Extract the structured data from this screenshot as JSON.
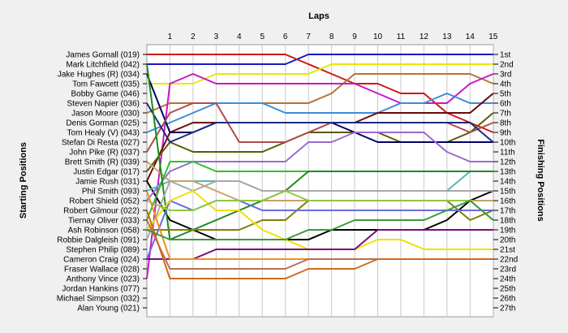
{
  "chart_data": {
    "type": "line",
    "title": "",
    "xlabel": "Laps",
    "ylabel_left": "Starting Positions",
    "ylabel_right": "Finishing Positions",
    "laps": [
      1,
      2,
      3,
      4,
      5,
      6,
      7,
      8,
      9,
      10,
      11,
      12,
      13,
      14,
      15
    ],
    "start_labels": [
      "James Gornall (019)",
      "Mark Litchfield (042)",
      "Jake Hughes (R) (034)",
      "Tom Fawcett (035)",
      "Bobby Game (046)",
      "Steven Napier (036)",
      "Jason Moore (030)",
      "Denis Gorman (025)",
      "Tom Healy (V) (043)",
      "Stefan Di Resta (027)",
      "John Pike (R) (037)",
      "Brett Smith (R) (039)",
      "Justin Edgar (017)",
      "Jamie Rush (031)",
      "Phil Smith (093)",
      "Robert Shield (052)",
      "Robert Gilmour (022)",
      "Tiernay Oliver (033)",
      "Ash Robinson (058)",
      "Robbie Dalgleish (091)",
      "Stephen Philip (089)",
      "Cameron Craig (024)",
      "Fraser Wallace (028)",
      "Anthony Vince (023)",
      "Jordan Hankins (077)",
      "Michael Simpson (032)",
      "Alan Young (021)"
    ],
    "finish_labels": [
      "1st",
      "2nd",
      "3rd",
      "4th",
      "5th",
      "6th",
      "7th",
      "8th",
      "9th",
      "10th",
      "11th",
      "12th",
      "13th",
      "14th",
      "15th",
      "16th",
      "17th",
      "18th",
      "19th",
      "20th",
      "21st",
      "22nd",
      "23rd",
      "24th",
      "25th",
      "26th",
      "27th"
    ],
    "y_range": [
      1,
      27
    ],
    "x_range": [
      0,
      15
    ],
    "grid": "vertical lines at each lap",
    "series": [
      {
        "color": "#1818c8",
        "positions": [
          2,
          2,
          2,
          2,
          2,
          2,
          2,
          1,
          1,
          1,
          1,
          1,
          1,
          1,
          1,
          1
        ]
      },
      {
        "color": "#d01818",
        "positions": [
          1,
          1,
          1,
          1,
          1,
          1,
          1,
          2,
          3,
          4,
          4,
          5,
          5,
          7,
          8,
          9
        ]
      },
      {
        "color": "#e8e800",
        "positions": [
          4,
          4,
          4,
          3,
          3,
          3,
          3,
          3,
          2,
          2,
          2,
          2,
          2,
          2,
          2,
          2
        ]
      },
      {
        "color": "#b87333",
        "positions": [
          7,
          6,
          6,
          6,
          6,
          6,
          6,
          6,
          5,
          3,
          3,
          3,
          3,
          3,
          3,
          4
        ]
      },
      {
        "color": "#c818c8",
        "positions": [
          24,
          4,
          3,
          4,
          4,
          4,
          4,
          4,
          4,
          4,
          5,
          6,
          6,
          6,
          4,
          3
        ]
      },
      {
        "color": "#3a8cdc",
        "positions": [
          9,
          8,
          7,
          6,
          6,
          6,
          7,
          7,
          7,
          7,
          7,
          6,
          6,
          5,
          6,
          6
        ]
      },
      {
        "color": "#6a0808",
        "positions": [
          14,
          9,
          8,
          8,
          8,
          8,
          8,
          8,
          8,
          8,
          7,
          7,
          7,
          7,
          7,
          5
        ]
      },
      {
        "color": "#5a5a00",
        "positions": [
          13,
          10,
          11,
          11,
          11,
          11,
          10,
          9,
          9,
          9,
          9,
          10,
          10,
          10,
          9,
          7
        ]
      },
      {
        "color": "#000066",
        "positions": [
          3,
          9,
          9,
          8,
          8,
          8,
          8,
          8,
          8,
          9,
          10,
          10,
          10,
          10,
          10,
          10
        ]
      },
      {
        "color": "#b04a4a",
        "positions": [
          11,
          7,
          6,
          6,
          10,
          10,
          10,
          9,
          8,
          8,
          8,
          8,
          8,
          8,
          9,
          8
        ]
      },
      {
        "color": "#1c2a80",
        "positions": [
          6,
          10,
          9,
          8,
          8,
          8,
          8,
          8,
          8,
          8,
          8,
          8,
          8,
          8,
          8,
          10
        ]
      },
      {
        "color": "#000000",
        "positions": [
          14,
          18,
          19,
          20,
          20,
          20,
          20,
          20,
          19,
          19,
          19,
          19,
          19,
          18,
          16,
          15
        ]
      },
      {
        "color": "#9a6ad0",
        "positions": [
          16,
          13,
          12,
          12,
          12,
          12,
          12,
          10,
          10,
          9,
          9,
          9,
          9,
          11,
          12,
          12
        ]
      },
      {
        "color": "#50b8b0",
        "positions": [
          15,
          14,
          14,
          14,
          14,
          15,
          15,
          15,
          15,
          15,
          15,
          15,
          15,
          15,
          13,
          13
        ]
      },
      {
        "color": "#c8a068",
        "positions": [
          12,
          14,
          14,
          15,
          16,
          16,
          16,
          16,
          16,
          16,
          16,
          16,
          16,
          16,
          16,
          16
        ]
      },
      {
        "color": "#30c030",
        "positions": [
          18,
          12,
          12,
          13,
          13,
          13,
          13,
          13,
          13,
          13,
          13,
          13,
          13,
          13,
          13,
          13
        ]
      },
      {
        "color": "#1a8a1a",
        "positions": [
          2,
          20,
          19,
          18,
          17,
          16,
          15,
          13,
          13,
          13,
          13,
          13,
          13,
          13,
          13,
          13
        ]
      },
      {
        "color": "#808000",
        "positions": [
          19,
          19,
          19,
          19,
          19,
          18,
          18,
          16,
          16,
          16,
          16,
          16,
          16,
          16,
          18,
          17
        ]
      },
      {
        "color": "#a8a8a8",
        "positions": [
          20,
          14,
          15,
          14,
          14,
          15,
          15,
          15,
          15,
          15,
          15,
          15,
          15,
          15,
          15,
          15
        ]
      },
      {
        "color": "#6b6bd8",
        "positions": [
          22,
          16,
          17,
          16,
          16,
          17,
          17,
          17,
          17,
          17,
          17,
          17,
          17,
          17,
          17,
          17
        ]
      },
      {
        "color": "#f0e000",
        "positions": [
          19,
          16,
          15,
          17,
          17,
          19,
          20,
          21,
          21,
          21,
          20,
          20,
          21,
          21,
          21,
          21
        ]
      },
      {
        "color": "#7a0a7a",
        "positions": [
          22,
          22,
          22,
          21,
          21,
          21,
          21,
          21,
          21,
          21,
          19,
          19,
          19,
          19,
          19,
          19
        ]
      },
      {
        "color": "#f09020",
        "positions": [
          15,
          22,
          22,
          22,
          22,
          22,
          22,
          22,
          22,
          22,
          22,
          22,
          22,
          22,
          22,
          22
        ]
      },
      {
        "color": "#b87050",
        "positions": [
          18,
          23,
          23,
          23,
          23,
          23,
          23,
          22,
          22,
          22,
          22,
          22,
          22,
          22,
          22,
          22
        ]
      },
      {
        "color": "#d2691e",
        "positions": [
          17,
          24,
          24,
          24,
          24,
          24,
          24,
          23,
          23,
          23,
          22,
          22,
          22,
          22,
          22,
          22
        ]
      },
      {
        "color": "#8cc840",
        "positions": [
          16,
          17,
          17,
          16,
          16,
          16,
          15,
          16,
          16,
          16,
          16,
          16,
          16,
          16,
          16,
          18
        ]
      },
      {
        "color": "#3a9a3a",
        "positions": [
          19,
          20,
          20,
          20,
          20,
          20,
          20,
          19,
          19,
          18,
          18,
          18,
          18,
          17,
          16,
          18
        ]
      }
    ]
  }
}
